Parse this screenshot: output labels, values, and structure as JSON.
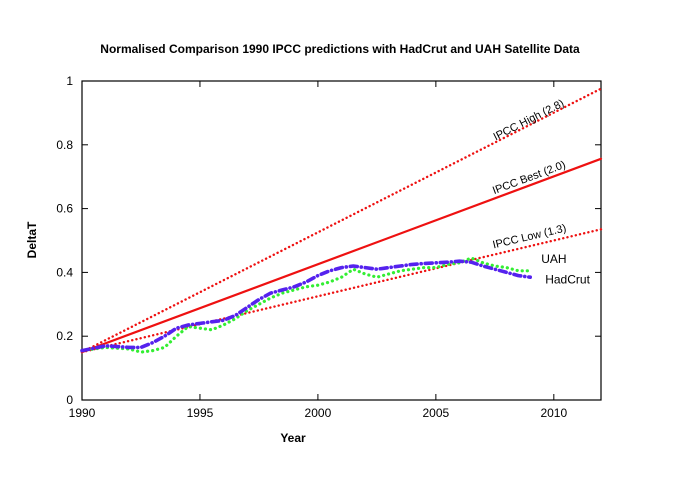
{
  "chart_data": {
    "type": "line",
    "title": "Normalised Comparison 1990 IPCC predictions with  HadCrut and UAH Satellite Data",
    "xlabel": "Year",
    "ylabel": "DeltaT",
    "xlim": [
      1990,
      2012
    ],
    "ylim": [
      0,
      1
    ],
    "x_ticks": [
      1990,
      1995,
      2000,
      2005,
      2010
    ],
    "x_tick_labels": [
      "1990",
      "1995",
      "2000",
      "2005",
      "2010"
    ],
    "y_ticks": [
      0,
      0.2,
      0.4,
      0.6,
      0.8,
      1
    ],
    "y_tick_labels": [
      "0",
      "0.2",
      "0.4",
      "0.6",
      "0.8",
      "1"
    ],
    "series": [
      {
        "name": "IPCC High (2.8)",
        "color": "#ee1111",
        "style": "dotted",
        "x": [
          1990,
          2012
        ],
        "y": [
          0.15,
          0.976
        ]
      },
      {
        "name": "IPCC Best (2.0)",
        "color": "#ee1111",
        "style": "solid",
        "x": [
          1990,
          2012
        ],
        "y": [
          0.15,
          0.756
        ]
      },
      {
        "name": "IPCC Low (1.3)",
        "color": "#ee1111",
        "style": "dotted",
        "x": [
          1990,
          2012
        ],
        "y": [
          0.15,
          0.535
        ]
      },
      {
        "name": "UAH",
        "color": "#33ee33",
        "style": "dotted",
        "x": [
          1990,
          1991,
          1992,
          1992.5,
          1993,
          1993.5,
          1994,
          1994.5,
          1995,
          1995.5,
          1996,
          1996.5,
          1997,
          1997.5,
          1998,
          1998.5,
          1999,
          1999.5,
          2000,
          2000.5,
          2001,
          2001.5,
          2002,
          2002.5,
          2003,
          2003.5,
          2004,
          2004.5,
          2005,
          2005.5,
          2006,
          2006.5,
          2007,
          2007.5,
          2008,
          2008.5,
          2009
        ],
        "y": [
          0.155,
          0.165,
          0.16,
          0.15,
          0.155,
          0.165,
          0.2,
          0.23,
          0.225,
          0.22,
          0.235,
          0.255,
          0.28,
          0.3,
          0.32,
          0.335,
          0.345,
          0.355,
          0.36,
          0.37,
          0.385,
          0.41,
          0.395,
          0.385,
          0.395,
          0.405,
          0.41,
          0.415,
          0.415,
          0.425,
          0.43,
          0.445,
          0.43,
          0.42,
          0.415,
          0.405,
          0.405
        ]
      },
      {
        "name": "HadCrut",
        "color": "#5522ee",
        "style": "dashdot",
        "x": [
          1990,
          1991,
          1992,
          1992.5,
          1993,
          1993.5,
          1994,
          1994.5,
          1995,
          1995.5,
          1996,
          1996.5,
          1997,
          1997.5,
          1998,
          1998.5,
          1999,
          1999.5,
          2000,
          2000.5,
          2001,
          2001.5,
          2002,
          2002.5,
          2003,
          2003.5,
          2004,
          2004.5,
          2005,
          2005.5,
          2006,
          2006.5,
          2007,
          2007.5,
          2008,
          2008.5,
          2009
        ],
        "y": [
          0.155,
          0.17,
          0.165,
          0.165,
          0.18,
          0.2,
          0.225,
          0.235,
          0.24,
          0.245,
          0.25,
          0.265,
          0.29,
          0.315,
          0.335,
          0.345,
          0.355,
          0.37,
          0.39,
          0.405,
          0.415,
          0.42,
          0.415,
          0.41,
          0.415,
          0.42,
          0.425,
          0.428,
          0.43,
          0.432,
          0.435,
          0.432,
          0.42,
          0.41,
          0.4,
          0.39,
          0.385
        ]
      }
    ],
    "annotations": [
      {
        "text": "IPCC High (2.8)",
        "x": 2009,
        "y": 0.868,
        "rotate_with": "IPCC High (2.8)"
      },
      {
        "text": "IPCC Best (2.0)",
        "x": 2009,
        "y": 0.687,
        "rotate_with": "IPCC Best (2.0)"
      },
      {
        "text": "IPCC Low (1.3)",
        "x": 2009,
        "y": 0.502,
        "rotate_with": "IPCC Low (1.3)"
      }
    ],
    "legend": [
      {
        "text": "UAH",
        "placement": "right-of-end"
      },
      {
        "text": "HadCrut",
        "placement": "right-of-end"
      }
    ],
    "grid": false
  }
}
